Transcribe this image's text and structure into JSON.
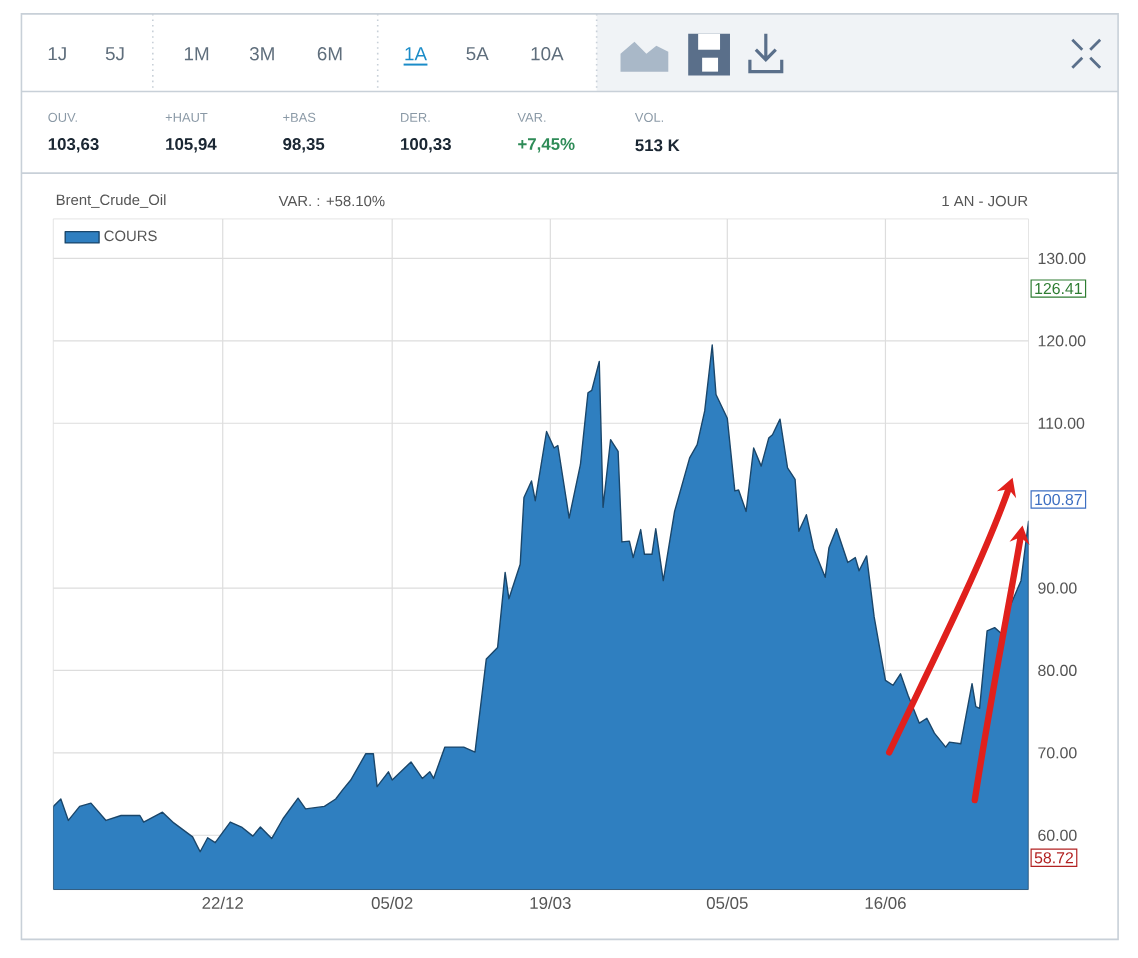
{
  "chart_data": {
    "type": "area",
    "title": "Brent_Crude_Oil",
    "subtitle": "VAR. : +58.10%",
    "annotations": [
      "1J",
      "5J",
      "1M",
      "3M",
      "6M",
      "1A",
      "5A",
      "10A",
      "OUV.",
      "103,63",
      "+HAUT",
      "105,94",
      "+BAS",
      "98,35",
      "DER.",
      "100,33",
      "VAR.",
      "+7,45%",
      "VOL.",
      "513 K",
      "1 AN - JOUR",
      "126.41",
      "100.87",
      "58.72"
    ],
    "xlim": [
      "2001-11-07",
      "2002-07-24"
    ],
    "ylim": [
      53.4,
      134.8
    ],
    "xticks": [
      {
        "value": "2001-12-22",
        "label": "22/12"
      },
      {
        "value": "2002-02-05",
        "label": "05/02"
      },
      {
        "value": "2002-03-19",
        "label": "19/03"
      },
      {
        "value": "2002-05-05",
        "label": "05/05"
      },
      {
        "value": "2002-06-16",
        "label": "16/06"
      }
    ],
    "yticks": [
      {
        "value": 60,
        "label": "60.00"
      },
      {
        "value": 70,
        "label": "70.00"
      },
      {
        "value": 80,
        "label": "80.00"
      },
      {
        "value": 90,
        "label": "90.00"
      },
      {
        "value": 110,
        "label": "110.00"
      },
      {
        "value": 120,
        "label": "120.00"
      },
      {
        "value": 130,
        "label": "130.00"
      }
    ],
    "grid": true,
    "legend": "top left",
    "series": [
      {
        "name": "COURS",
        "color": "#2f7fc0",
        "x": [
          "2001-11-07",
          "2001-11-09",
          "2001-11-11",
          "2001-11-14",
          "2001-11-17",
          "2001-11-21",
          "2001-11-25",
          "2001-11-30",
          "2001-12-01",
          "2001-12-06",
          "2001-12-09",
          "2001-12-14",
          "2001-12-16",
          "2001-12-18",
          "2001-12-20",
          "2001-12-24",
          "2001-12-27",
          "2001-12-30",
          "2002-01-01",
          "2002-01-04",
          "2002-01-07",
          "2002-01-11",
          "2002-01-13",
          "2002-01-18",
          "2002-01-21",
          "2002-01-23",
          "2002-01-25",
          "2002-01-29",
          "2002-01-31",
          "2002-02-01",
          "2002-02-04",
          "2002-02-05",
          "2002-02-10",
          "2002-02-13",
          "2002-02-15",
          "2002-02-16",
          "2002-02-19",
          "2002-02-24",
          "2002-02-27",
          "2002-03-02",
          "2002-03-05",
          "2002-03-07",
          "2002-03-08",
          "2002-03-11",
          "2002-03-12",
          "2002-03-14",
          "2002-03-15",
          "2002-03-18",
          "2002-03-20",
          "2002-03-21",
          "2002-03-24",
          "2002-03-27",
          "2002-03-29",
          "2002-03-30",
          "2002-04-01",
          "2002-04-02",
          "2002-04-04",
          "2002-04-06",
          "2002-04-07",
          "2002-04-09",
          "2002-04-10",
          "2002-04-12",
          "2002-04-13",
          "2002-04-15",
          "2002-04-16",
          "2002-04-18",
          "2002-04-21",
          "2002-04-25",
          "2002-04-27",
          "2002-04-29",
          "2002-05-01",
          "2002-05-02",
          "2002-05-05",
          "2002-05-07",
          "2002-05-08",
          "2002-05-10",
          "2002-05-12",
          "2002-05-14",
          "2002-05-16",
          "2002-05-17",
          "2002-05-19",
          "2002-05-21",
          "2002-05-23",
          "2002-05-24",
          "2002-05-26",
          "2002-05-28",
          "2002-05-31",
          "2002-06-01",
          "2002-06-03",
          "2002-06-06",
          "2002-06-08",
          "2002-06-09",
          "2002-06-11",
          "2002-06-13",
          "2002-06-16",
          "2002-06-18",
          "2002-06-20",
          "2002-06-22",
          "2002-06-25",
          "2002-06-27",
          "2002-06-29",
          "2002-07-02",
          "2002-07-03",
          "2002-07-06",
          "2002-07-09",
          "2002-07-10",
          "2002-07-11",
          "2002-07-13",
          "2002-07-15",
          "2002-07-17",
          "2002-07-19",
          "2002-07-22",
          "2002-07-24"
        ],
        "values": [
          63.5,
          64.4,
          61.8,
          63.5,
          63.9,
          61.8,
          62.4,
          62.4,
          61.6,
          62.8,
          61.5,
          59.8,
          58.0,
          59.7,
          59.1,
          61.6,
          61.0,
          59.9,
          61.0,
          59.6,
          62.0,
          64.5,
          63.2,
          63.5,
          64.4,
          65.6,
          66.7,
          69.9,
          69.9,
          65.9,
          67.7,
          66.7,
          68.9,
          66.9,
          67.7,
          66.9,
          70.7,
          70.7,
          70.1,
          81.4,
          82.8,
          91.9,
          88.7,
          92.9,
          101.0,
          103.0,
          100.6,
          109.0,
          107.0,
          107.3,
          98.5,
          105.0,
          113.7,
          114.0,
          117.5,
          99.8,
          108.0,
          106.6,
          95.6,
          95.7,
          93.7,
          97.1,
          94.1,
          94.1,
          97.2,
          90.9,
          99.3,
          105.8,
          107.4,
          111.5,
          119.5,
          113.5,
          110.6,
          101.8,
          101.9,
          99.3,
          107.0,
          104.8,
          108.2,
          108.6,
          110.5,
          104.6,
          103.2,
          96.9,
          98.9,
          94.7,
          91.3,
          94.9,
          97.2,
          93.1,
          93.7,
          92.1,
          93.9,
          86.5,
          78.8,
          78.2,
          79.6,
          77.0,
          73.6,
          74.2,
          72.4,
          70.7,
          71.3,
          71.1,
          78.4,
          75.6,
          75.4,
          84.8,
          85.2,
          84.4,
          87.7,
          90.9,
          98.1
        ]
      }
    ]
  }
}
